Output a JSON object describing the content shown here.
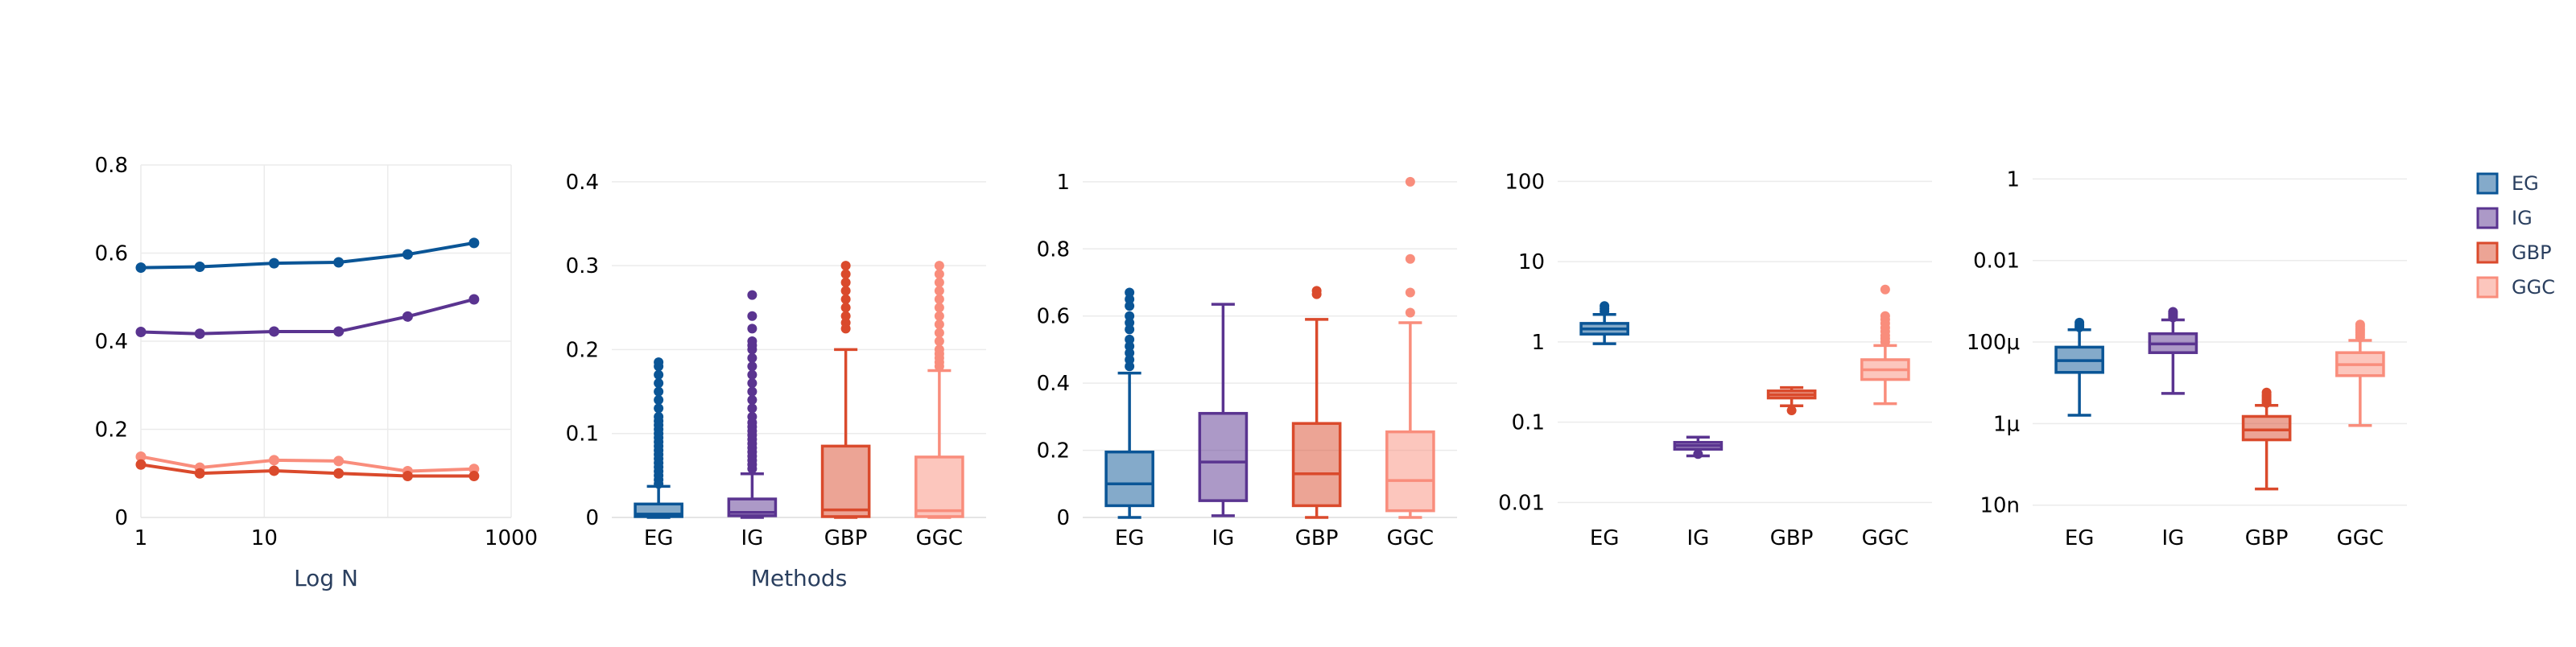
{
  "colors": {
    "EG": "#0a5596",
    "IG": "#5a3490",
    "GBP": "#da4a2c",
    "GGC": "#f98d7c"
  },
  "legend": {
    "items": [
      {
        "name": "EG",
        "color": "#0a5596"
      },
      {
        "name": "IG",
        "color": "#5a3490"
      },
      {
        "name": "GBP",
        "color": "#da4a2c"
      },
      {
        "name": "GGC",
        "color": "#f98d7c"
      }
    ],
    "placement": "top-right"
  },
  "chart_data": [
    {
      "type": "line",
      "xlabel": "Log N",
      "ylabel": "",
      "xscale": "log",
      "xlim": [
        1,
        1000
      ],
      "ylim": [
        0,
        0.8
      ],
      "xticks": [
        {
          "v": 1,
          "label": "1"
        },
        {
          "v": 10,
          "label": "10"
        },
        {
          "v": 100,
          "label": ""
        },
        {
          "v": 1000,
          "label": "1000"
        }
      ],
      "yticks": [
        {
          "v": 0,
          "label": "0"
        },
        {
          "v": 0.2,
          "label": "0.2"
        },
        {
          "v": 0.4,
          "label": "0.4"
        },
        {
          "v": 0.6,
          "label": "0.6"
        },
        {
          "v": 0.8,
          "label": "0.8"
        }
      ],
      "grid": true,
      "series": [
        {
          "name": "EG",
          "color": "#0a5596",
          "x": [
            1,
            3,
            12,
            40,
            145,
            500
          ],
          "y": [
            0.567,
            0.569,
            0.577,
            0.579,
            0.597,
            0.623
          ]
        },
        {
          "name": "IG",
          "color": "#5a3490",
          "x": [
            1,
            3,
            12,
            40,
            145,
            500
          ],
          "y": [
            0.421,
            0.417,
            0.422,
            0.422,
            0.456,
            0.495
          ]
        },
        {
          "name": "GGC",
          "color": "#f98d7c",
          "x": [
            1,
            3,
            12,
            40,
            145,
            500
          ],
          "y": [
            0.138,
            0.113,
            0.13,
            0.128,
            0.105,
            0.11
          ]
        },
        {
          "name": "GBP",
          "color": "#da4a2c",
          "x": [
            1,
            3,
            12,
            40,
            145,
            500
          ],
          "y": [
            0.12,
            0.1,
            0.106,
            0.1,
            0.094,
            0.094
          ]
        }
      ]
    },
    {
      "type": "box",
      "xlabel": "Methods",
      "yscale": "linear",
      "ylim": [
        0,
        0.42
      ],
      "yticks": [
        {
          "v": 0,
          "label": "0"
        },
        {
          "v": 0.1,
          "label": "0.1"
        },
        {
          "v": 0.2,
          "label": "0.2"
        },
        {
          "v": 0.3,
          "label": "0.3"
        },
        {
          "v": 0.4,
          "label": "0.4"
        }
      ],
      "grid": true,
      "categories": [
        "EG",
        "IG",
        "GBP",
        "GGC"
      ],
      "boxes": [
        {
          "name": "EG",
          "color": "#0a5596",
          "lower_whisker": 0,
          "q1": 0.001,
          "median": 0.004,
          "q3": 0.016,
          "upper_whisker": 0.037,
          "outliers": [
            0.04,
            0.045,
            0.05,
            0.055,
            0.06,
            0.065,
            0.07,
            0.075,
            0.08,
            0.085,
            0.09,
            0.095,
            0.1,
            0.105,
            0.11,
            0.115,
            0.12,
            0.13,
            0.14,
            0.15,
            0.16,
            0.17,
            0.18,
            0.185
          ]
        },
        {
          "name": "IG",
          "color": "#5a3490",
          "lower_whisker": 0,
          "q1": 0.002,
          "median": 0.006,
          "q3": 0.022,
          "upper_whisker": 0.052,
          "outliers": [
            0.058,
            0.063,
            0.068,
            0.073,
            0.078,
            0.083,
            0.088,
            0.093,
            0.098,
            0.103,
            0.108,
            0.113,
            0.12,
            0.13,
            0.14,
            0.15,
            0.16,
            0.17,
            0.18,
            0.19,
            0.2,
            0.205,
            0.21,
            0.225,
            0.24,
            0.265
          ]
        },
        {
          "name": "GBP",
          "color": "#da4a2c",
          "lower_whisker": 0,
          "q1": 0.001,
          "median": 0.009,
          "q3": 0.085,
          "upper_whisker": 0.2,
          "outliers": [
            0.225,
            0.232,
            0.24,
            0.25,
            0.26,
            0.27,
            0.28,
            0.29,
            0.3
          ]
        },
        {
          "name": "GGC",
          "color": "#f98d7c",
          "lower_whisker": 0,
          "q1": 0.001,
          "median": 0.008,
          "q3": 0.072,
          "upper_whisker": 0.175,
          "outliers": [
            0.18,
            0.185,
            0.19,
            0.195,
            0.2,
            0.21,
            0.22,
            0.23,
            0.24,
            0.25,
            0.26,
            0.27,
            0.28,
            0.29,
            0.3
          ]
        }
      ]
    },
    {
      "type": "box",
      "xlabel": "",
      "yscale": "linear",
      "ylim": [
        0,
        1.05
      ],
      "yticks": [
        {
          "v": 0,
          "label": "0"
        },
        {
          "v": 0.2,
          "label": "0.2"
        },
        {
          "v": 0.4,
          "label": "0.4"
        },
        {
          "v": 0.6,
          "label": "0.6"
        },
        {
          "v": 0.8,
          "label": "0.8"
        },
        {
          "v": 1,
          "label": "1"
        }
      ],
      "grid": true,
      "categories": [
        "EG",
        "IG",
        "GBP",
        "GGC"
      ],
      "boxes": [
        {
          "name": "EG",
          "color": "#0a5596",
          "lower_whisker": 0,
          "q1": 0.035,
          "median": 0.1,
          "q3": 0.195,
          "upper_whisker": 0.43,
          "outliers": [
            0.45,
            0.47,
            0.49,
            0.51,
            0.53,
            0.56,
            0.58,
            0.6,
            0.63,
            0.65,
            0.67
          ]
        },
        {
          "name": "IG",
          "color": "#5a3490",
          "lower_whisker": 0.005,
          "q1": 0.05,
          "median": 0.165,
          "q3": 0.31,
          "upper_whisker": 0.635,
          "outliers": []
        },
        {
          "name": "GBP",
          "color": "#da4a2c",
          "lower_whisker": 0,
          "q1": 0.035,
          "median": 0.13,
          "q3": 0.28,
          "upper_whisker": 0.59,
          "outliers": [
            0.665,
            0.675
          ]
        },
        {
          "name": "GGC",
          "color": "#f98d7c",
          "lower_whisker": 0,
          "q1": 0.02,
          "median": 0.11,
          "q3": 0.255,
          "upper_whisker": 0.58,
          "outliers": [
            0.61,
            0.67,
            0.77,
            1.0
          ]
        }
      ]
    },
    {
      "type": "box",
      "xlabel": "",
      "yscale": "log",
      "ylim": [
        0.0065,
        160
      ],
      "yticks": [
        {
          "v": 0.01,
          "label": "0.01"
        },
        {
          "v": 0.1,
          "label": "0.1"
        },
        {
          "v": 1,
          "label": "1"
        },
        {
          "v": 10,
          "label": "10"
        },
        {
          "v": 100,
          "label": "100"
        }
      ],
      "grid": true,
      "categories": [
        "EG",
        "IG",
        "GBP",
        "GGC"
      ],
      "boxes": [
        {
          "name": "EG",
          "color": "#0a5596",
          "lower_whisker": 0.95,
          "q1": 1.25,
          "median": 1.45,
          "q3": 1.7,
          "upper_whisker": 2.2,
          "outliers": [
            2.4,
            2.6,
            2.8
          ]
        },
        {
          "name": "IG",
          "color": "#5a3490",
          "lower_whisker": 0.038,
          "q1": 0.046,
          "median": 0.051,
          "q3": 0.056,
          "upper_whisker": 0.065,
          "outliers": [
            0.04
          ]
        },
        {
          "name": "GBP",
          "color": "#da4a2c",
          "lower_whisker": 0.16,
          "q1": 0.2,
          "median": 0.22,
          "q3": 0.245,
          "upper_whisker": 0.27,
          "outliers": [
            0.14
          ]
        },
        {
          "name": "GGC",
          "color": "#f98d7c",
          "lower_whisker": 0.17,
          "q1": 0.34,
          "median": 0.45,
          "q3": 0.6,
          "upper_whisker": 0.9,
          "outliers": [
            1.0,
            1.1,
            1.2,
            1.35,
            1.5,
            1.7,
            1.9,
            2.1,
            4.5
          ]
        }
      ]
    },
    {
      "type": "box",
      "xlabel": "",
      "yscale": "log",
      "ylim": [
        5e-09,
        2.2
      ],
      "yticks": [
        {
          "v": 1e-08,
          "label": "10n"
        },
        {
          "v": 1e-06,
          "label": "1μ"
        },
        {
          "v": 0.0001,
          "label": "100μ"
        },
        {
          "v": 0.01,
          "label": "0.01"
        },
        {
          "v": 1,
          "label": "1"
        }
      ],
      "grid": true,
      "categories": [
        "EG",
        "IG",
        "GBP",
        "GGC"
      ],
      "boxes": [
        {
          "name": "EG",
          "color": "#0a5596",
          "lower_whisker": 1.6e-06,
          "q1": 1.8e-05,
          "median": 3.5e-05,
          "q3": 7.5e-05,
          "upper_whisker": 0.0002,
          "outliers": [
            0.00023,
            0.00026,
            0.0003
          ]
        },
        {
          "name": "IG",
          "color": "#5a3490",
          "lower_whisker": 5.5e-06,
          "q1": 5.5e-05,
          "median": 9e-05,
          "q3": 0.00016,
          "upper_whisker": 0.00035,
          "outliers": [
            0.0004,
            0.00045,
            0.0005,
            0.00055
          ]
        },
        {
          "name": "GBP",
          "color": "#da4a2c",
          "lower_whisker": 2.5e-08,
          "q1": 4e-07,
          "median": 7e-07,
          "q3": 1.5e-06,
          "upper_whisker": 2.8e-06,
          "outliers": [
            3.2e-06,
            3.6e-06,
            4e-06,
            4.5e-06,
            5e-06,
            5.8e-06
          ]
        },
        {
          "name": "GGC",
          "color": "#f98d7c",
          "lower_whisker": 9e-07,
          "q1": 1.5e-05,
          "median": 2.8e-05,
          "q3": 5.5e-05,
          "upper_whisker": 0.00011,
          "outliers": [
            0.00013,
            0.00015,
            0.00017,
            0.00019,
            0.00021,
            0.00024,
            0.00027
          ]
        }
      ]
    }
  ]
}
